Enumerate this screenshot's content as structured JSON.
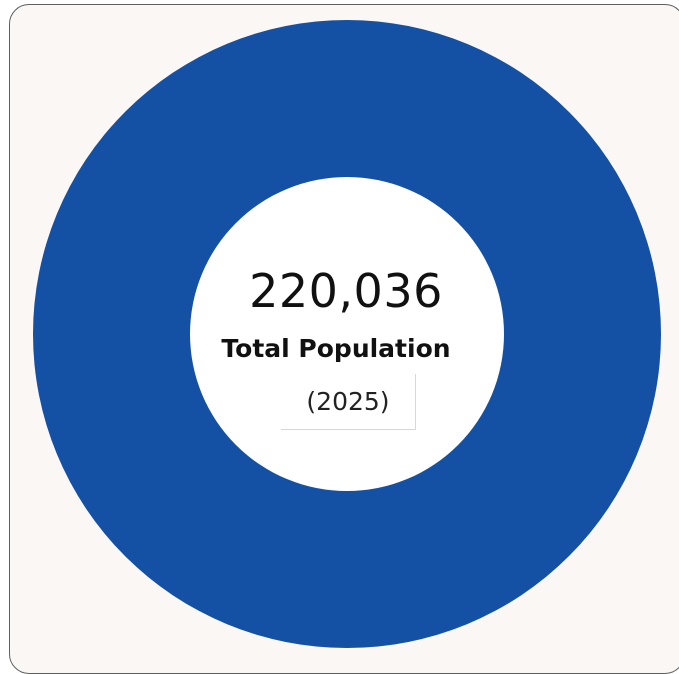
{
  "chart_data": {
    "type": "pie",
    "style": "donut",
    "categories": [
      "Total Population"
    ],
    "values": [
      220036
    ],
    "colors": [
      "#1450a3"
    ],
    "center_value": "220,036",
    "center_label": "Total Population",
    "center_sublabel": "(2025)"
  },
  "colors": {
    "ring": "#1450a3",
    "card_background": "#faf7f5",
    "border": "#5f5f5f"
  }
}
